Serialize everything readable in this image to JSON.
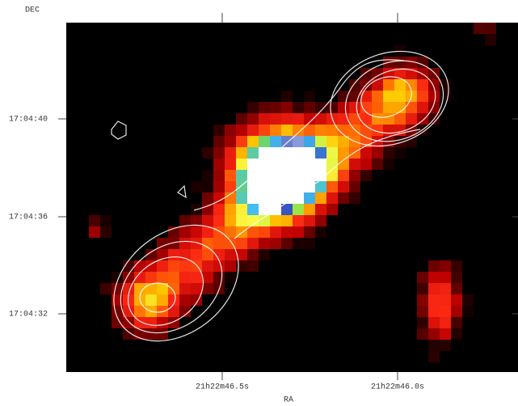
{
  "axes": {
    "y_label": "DEC",
    "x_label": "RA",
    "y_ticks": [
      "17:04:40",
      "17:04:36",
      "17:04:32"
    ],
    "x_ticks": [
      "21h22m46.5s",
      "21h22m46.0s"
    ]
  }
}
